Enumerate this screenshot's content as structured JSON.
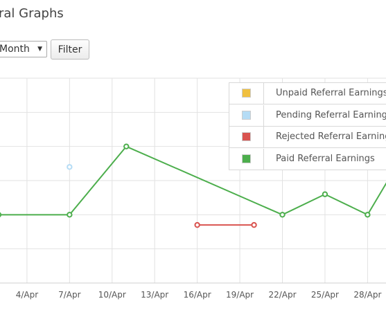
{
  "page": {
    "title": "ral Graphs"
  },
  "controls": {
    "period_value": "Month",
    "filter_label": "Filter"
  },
  "legend": [
    {
      "label": "Unpaid Referral Earnings",
      "color": "#f0c040"
    },
    {
      "label": "Pending Referral Earnings",
      "color": "#b5dcf5"
    },
    {
      "label": "Rejected Referral Earnings",
      "color": "#d9534f"
    },
    {
      "label": "Paid Referral Earnings",
      "color": "#4cae4c"
    }
  ],
  "chart_data": {
    "type": "line",
    "x_ticks": [
      "4/Apr",
      "7/Apr",
      "10/Apr",
      "13/Apr",
      "16/Apr",
      "19/Apr",
      "22/Apr",
      "25/Apr",
      "28/Apr"
    ],
    "x_tick_days": [
      4,
      7,
      10,
      13,
      16,
      19,
      22,
      25,
      28
    ],
    "x_range_days": [
      2.1,
      29.3
    ],
    "y_range": [
      0,
      6
    ],
    "grid": true,
    "legend_position": "top-right",
    "series": [
      {
        "name": "Paid Referral Earnings",
        "color": "#4cae4c",
        "points": [
          [
            2,
            2
          ],
          [
            7,
            2
          ],
          [
            11,
            4
          ],
          [
            22,
            2
          ],
          [
            25,
            2.6
          ],
          [
            28,
            2
          ],
          [
            30,
            3.4
          ]
        ]
      },
      {
        "name": "Rejected Referral Earnings",
        "color": "#d9534f",
        "points": [
          [
            16,
            1.7
          ],
          [
            20,
            1.7
          ]
        ]
      },
      {
        "name": "Pending Referral Earnings",
        "color": "#b5dcf5",
        "points": [
          [
            7,
            3.4
          ]
        ]
      }
    ]
  }
}
